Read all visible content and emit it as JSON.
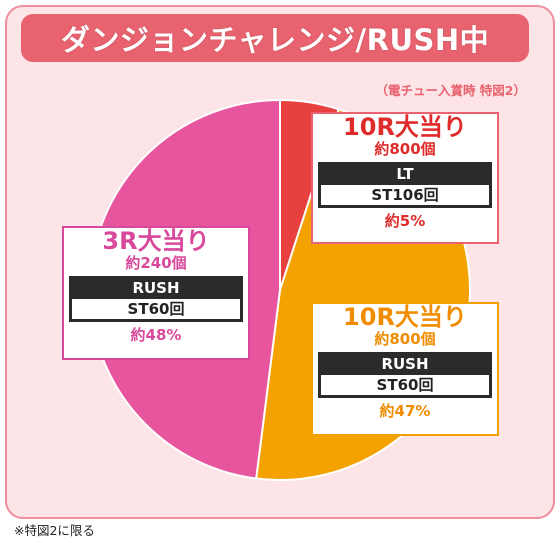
{
  "title": "ダンジョンチャレンジ/RUSH中",
  "condition_note": "（電チュー入賞時 特図2）",
  "footnote": "※特図2に限る",
  "colors": {
    "frame_bg": "#fde4e6",
    "frame_border": "#ef8f9a",
    "banner": "#e8636f",
    "slice_10r_lt": "#e8403f",
    "slice_10r_rush": "#f3a200",
    "slice_3r_rush": "#e8559f"
  },
  "chart_data": {
    "type": "pie",
    "slices": [
      {
        "label": "10R大当り",
        "payout": "約800個",
        "mode": "LT",
        "st": "ST106回",
        "rate_text": "約5%",
        "value": 5,
        "color": "#e8403f"
      },
      {
        "label": "10R大当り",
        "payout": "約800個",
        "mode": "RUSH",
        "st": "ST60回",
        "rate_text": "約47%",
        "value": 47,
        "color": "#f3a200"
      },
      {
        "label": "3R大当り",
        "payout": "約240個",
        "mode": "RUSH",
        "st": "ST60回",
        "rate_text": "約48%",
        "value": 48,
        "color": "#e8559f"
      }
    ]
  }
}
